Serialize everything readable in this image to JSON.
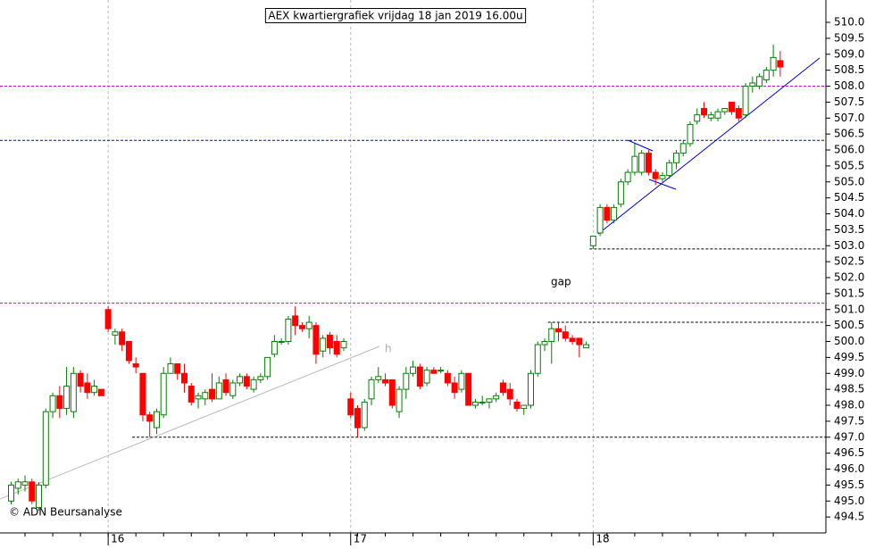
{
  "chart_data": {
    "type": "candlestick",
    "title": "AEX kwartiergrafiek vrijdag 18 jan 2019 16.00u",
    "annotations": [
      "gap",
      "h"
    ],
    "credit": "© ADN Beursanalyse",
    "categories": [
      null,
      null,
      null,
      null,
      null,
      null,
      null,
      null,
      null,
      null,
      null,
      null,
      null,
      null,
      "16",
      null,
      null,
      null,
      null,
      null,
      null,
      null,
      null,
      null,
      null,
      null,
      null,
      null,
      null,
      null,
      null,
      null,
      null,
      null,
      null,
      null,
      null,
      null,
      null,
      null,
      null,
      null,
      null,
      null,
      null,
      null,
      null,
      null,
      null,
      "17",
      null,
      null,
      null,
      null,
      null,
      null,
      null,
      null,
      null,
      null,
      null,
      null,
      null,
      null,
      null,
      null,
      null,
      null,
      null,
      null,
      null,
      null,
      null,
      null,
      null,
      null,
      null,
      null,
      null,
      null,
      null,
      null,
      null,
      null,
      "18",
      null,
      null,
      null,
      null,
      null,
      null,
      null,
      null,
      null,
      null,
      null,
      null,
      null,
      null,
      null,
      null,
      null,
      null,
      null,
      null,
      null,
      null,
      null,
      null,
      null,
      null,
      null
    ],
    "open": [
      495.0,
      495.4,
      495.5,
      495.6,
      494.8,
      495.5,
      497.8,
      498.3,
      497.9,
      497.8,
      499.0,
      498.7,
      498.4,
      498.5,
      501.0,
      500.2,
      500.3,
      500.0,
      499.3,
      499.0,
      497.7,
      497.3,
      497.7,
      499.0,
      499.3,
      499.0,
      498.6,
      498.2,
      498.2,
      498.5,
      498.2,
      498.8,
      498.3,
      498.7,
      498.9,
      498.5,
      498.8,
      498.9,
      499.6,
      500.0,
      500.0,
      500.8,
      500.5,
      500.4,
      500.5,
      499.7,
      500.2,
      500.0,
      499.8,
      498.2,
      497.9,
      497.3,
      498.2,
      498.8,
      498.8,
      498.8,
      497.8,
      498.5,
      499.0,
      499.2,
      498.7,
      499.1,
      499.1,
      499.0,
      498.7,
      498.5,
      499.0,
      498.0,
      498.1,
      498.1,
      498.2,
      498.7,
      498.5,
      498.1,
      497.9,
      498.0,
      499.0,
      499.9,
      500.0,
      500.4,
      500.3,
      500.1,
      500.1,
      499.8,
      503.0,
      503.4,
      504.2,
      503.8,
      504.3,
      505.0,
      505.3,
      505.3,
      505.9,
      505.3,
      505.1,
      505.2,
      505.6,
      505.9,
      506.2,
      506.9,
      507.3,
      507.0,
      507.0,
      507.2,
      507.5,
      507.3,
      507.1,
      508.0,
      508.0,
      508.2,
      508.5,
      508.8
    ],
    "high": [
      495.6,
      495.7,
      495.8,
      495.7,
      495.6,
      497.9,
      498.4,
      498.6,
      499.2,
      499.2,
      499.1,
      499.0,
      498.8,
      498.5,
      501.1,
      500.4,
      500.4,
      500.0,
      499.5,
      499.0,
      497.8,
      497.9,
      499.2,
      499.5,
      499.3,
      499.3,
      498.7,
      498.4,
      498.5,
      499.0,
      498.9,
      499.0,
      498.8,
      499.0,
      499.0,
      498.9,
      499.0,
      499.5,
      500.2,
      500.1,
      500.8,
      501.1,
      500.6,
      500.8,
      500.6,
      500.2,
      500.3,
      500.2,
      500.1,
      498.4,
      498.0,
      498.2,
      498.9,
      499.2,
      499.0,
      498.8,
      498.6,
      499.2,
      499.4,
      499.3,
      499.2,
      499.2,
      499.2,
      499.1,
      498.9,
      499.1,
      499.0,
      498.2,
      498.3,
      498.2,
      498.4,
      498.8,
      498.7,
      498.2,
      498.0,
      499.1,
      500.0,
      500.1,
      500.6,
      500.6,
      500.5,
      500.2,
      500.1,
      500.0,
      503.3,
      504.3,
      504.3,
      504.3,
      505.1,
      505.4,
      506.2,
      506.0,
      506.0,
      505.4,
      505.3,
      505.7,
      506.0,
      506.3,
      506.9,
      507.3,
      507.5,
      507.2,
      507.3,
      507.3,
      507.5,
      507.4,
      508.1,
      508.3,
      508.4,
      508.6,
      509.3,
      509.1
    ],
    "low": [
      494.9,
      495.2,
      495.3,
      494.9,
      494.7,
      495.4,
      497.6,
      497.6,
      497.7,
      497.6,
      498.4,
      498.2,
      498.3,
      498.3,
      500.3,
      499.9,
      499.7,
      499.3,
      499.0,
      497.5,
      497.0,
      497.1,
      497.6,
      499.0,
      498.8,
      498.4,
      498.0,
      497.9,
      498.0,
      498.1,
      498.2,
      498.3,
      498.2,
      498.6,
      498.5,
      498.4,
      498.7,
      498.8,
      499.5,
      499.9,
      499.9,
      500.2,
      500.3,
      500.1,
      499.3,
      499.5,
      499.6,
      499.5,
      499.7,
      497.6,
      497.0,
      497.2,
      498.0,
      498.7,
      498.6,
      497.9,
      497.6,
      498.2,
      498.9,
      498.5,
      498.6,
      499.0,
      499.0,
      498.6,
      498.2,
      498.4,
      498.0,
      497.9,
      498.0,
      497.9,
      498.1,
      498.3,
      498.0,
      497.8,
      497.7,
      497.9,
      498.9,
      499.7,
      499.3,
      500.0,
      500.0,
      499.9,
      499.5,
      499.8,
      502.9,
      503.3,
      503.7,
      503.7,
      504.2,
      504.9,
      505.2,
      505.2,
      505.2,
      504.9,
      505.0,
      505.1,
      505.4,
      505.8,
      506.1,
      506.8,
      507.0,
      506.9,
      506.9,
      507.1,
      507.1,
      506.9,
      507.0,
      507.8,
      507.9,
      508.1,
      508.3,
      508.3
    ],
    "close": [
      495.5,
      495.6,
      495.6,
      495.0,
      495.5,
      497.8,
      498.3,
      497.9,
      498.6,
      499.0,
      498.6,
      498.4,
      498.6,
      498.3,
      500.4,
      500.3,
      499.9,
      499.4,
      499.2,
      497.7,
      497.5,
      497.8,
      499.0,
      499.3,
      499.0,
      498.7,
      498.1,
      498.3,
      498.4,
      498.2,
      498.7,
      498.4,
      498.7,
      498.9,
      498.6,
      498.8,
      498.9,
      499.5,
      500.0,
      500.0,
      500.7,
      500.5,
      500.4,
      500.6,
      499.6,
      500.1,
      499.8,
      499.6,
      500.0,
      497.7,
      497.3,
      498.1,
      498.8,
      498.9,
      498.7,
      498.0,
      498.5,
      499.0,
      499.2,
      498.6,
      499.1,
      499.0,
      499.1,
      498.7,
      498.4,
      499.0,
      498.0,
      498.1,
      498.1,
      498.2,
      498.3,
      498.4,
      498.2,
      497.9,
      498.0,
      499.0,
      499.9,
      500.0,
      500.4,
      500.3,
      500.1,
      500.0,
      499.9,
      499.9,
      503.3,
      504.2,
      503.8,
      504.2,
      505.0,
      505.3,
      505.8,
      505.9,
      505.3,
      505.1,
      505.2,
      505.6,
      505.9,
      506.2,
      506.8,
      507.1,
      507.1,
      507.1,
      507.2,
      507.3,
      507.2,
      507.0,
      508.0,
      508.1,
      508.3,
      508.5,
      508.9,
      508.6
    ],
    "up_color": "#008000",
    "down_color": "#ff0000",
    "reference_lines": [
      {
        "value": 508.0,
        "color": "#cc00cc"
      },
      {
        "value": 506.3,
        "color": "#0000cc"
      },
      {
        "value": 502.9,
        "color": "#000000",
        "start": 84
      },
      {
        "value": 501.2,
        "color": "#cc00cc"
      },
      {
        "value": 500.6,
        "color": "#000000",
        "start": 78
      },
      {
        "value": 497.0,
        "color": "#000000",
        "start": 18
      }
    ],
    "ylim": [
      494.0,
      510.7
    ],
    "yticks": [
      494.5,
      {
        "value": 495,
        "label": "495.0"
      },
      495.5,
      {
        "value": 496,
        "label": "496.0"
      },
      496.5,
      {
        "value": 497,
        "label": "497.0"
      },
      497.5,
      {
        "value": 498,
        "label": "498.0"
      },
      498.5,
      {
        "value": 499,
        "label": "499.0"
      },
      499.5,
      {
        "value": 500,
        "label": "500.0"
      },
      500.5,
      {
        "value": 501,
        "label": "501.0"
      },
      501.5,
      {
        "value": 502,
        "label": "502.0"
      },
      502.5,
      {
        "value": 503,
        "label": "503.0"
      },
      503.5,
      {
        "value": 504,
        "label": "504.0"
      },
      504.5,
      {
        "value": 505,
        "label": "505.0"
      },
      505.5,
      {
        "value": 506,
        "label": "506.0"
      },
      506.5,
      {
        "value": 507,
        "label": "507.0"
      },
      507.5,
      {
        "value": 508,
        "label": "508.0"
      },
      508.5,
      {
        "value": 509,
        "label": "509.0"
      },
      509.5,
      {
        "value": 510,
        "label": "510.0"
      }
    ]
  }
}
